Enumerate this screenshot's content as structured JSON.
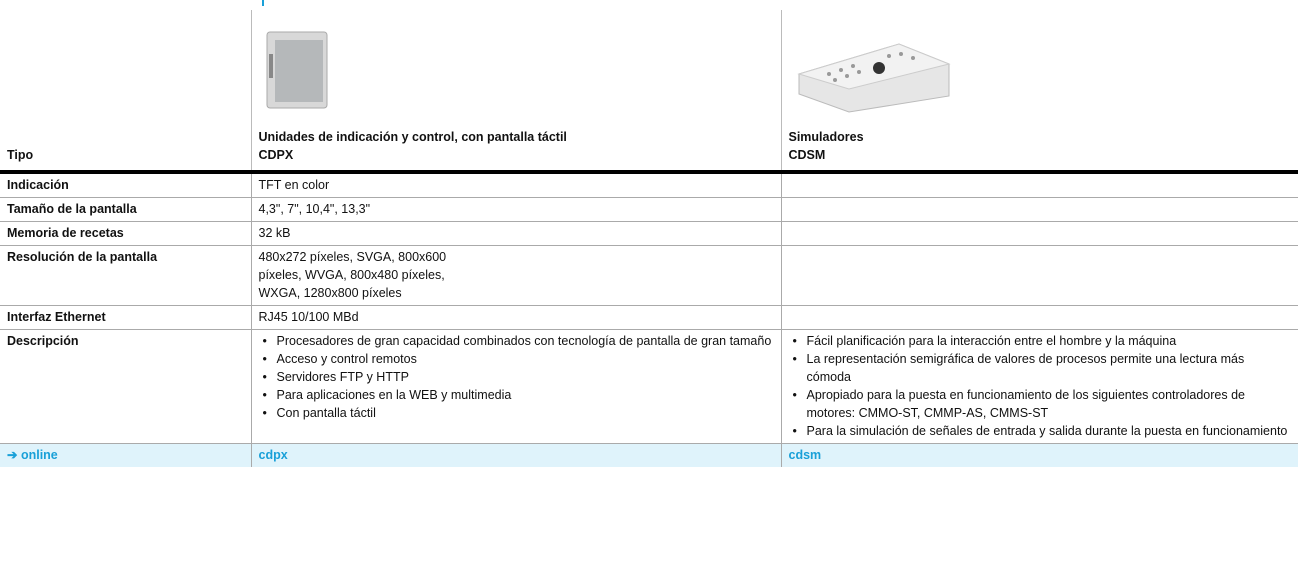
{
  "table": {
    "type_label": "Tipo",
    "columns": [
      {
        "title": "Unidades de indicación y control, con pantalla táctil",
        "code": "CDPX"
      },
      {
        "title": "Simuladores",
        "code": "CDSM"
      }
    ],
    "rows": [
      {
        "label": "Indicación",
        "cells": [
          [
            "TFT en color"
          ],
          []
        ]
      },
      {
        "label": "Tamaño de la pantalla",
        "cells": [
          [
            "4,3\", 7\", 10,4\", 13,3\""
          ],
          []
        ]
      },
      {
        "label": "Memoria de recetas",
        "cells": [
          [
            "32 kB"
          ],
          []
        ]
      },
      {
        "label": "Resolución de la pantalla",
        "cells": [
          [
            "480x272 píxeles, SVGA, 800x600",
            "píxeles, WVGA, 800x480 píxeles,",
            "WXGA, 1280x800 píxeles"
          ],
          []
        ]
      },
      {
        "label": "Interfaz Ethernet",
        "cells": [
          [
            "RJ45 10/100 MBd"
          ],
          []
        ]
      }
    ],
    "description": {
      "label": "Descripción",
      "cells": [
        [
          "Procesadores de gran capacidad combinados con tecnología de pantalla de gran tamaño",
          "Acceso y control remotos",
          "Servidores FTP y HTTP",
          "Para aplicaciones en la WEB y multimedia",
          "Con pantalla táctil"
        ],
        [
          "Fácil planificación para la interacción entre el hombre y la máquina",
          "La representación semigráfica de valores de procesos permite una lectura más cómoda",
          "Apropiado para la puesta en funcionamiento de los siguientes controladores de motores: CMMO-ST, CMMP-AS, CMMS-ST",
          "Para la simulación de señales de entrada y salida durante la puesta en funcionamiento"
        ]
      ]
    },
    "footer": {
      "label": "➔ online",
      "links": [
        "cdpx",
        "cdsm"
      ]
    }
  }
}
